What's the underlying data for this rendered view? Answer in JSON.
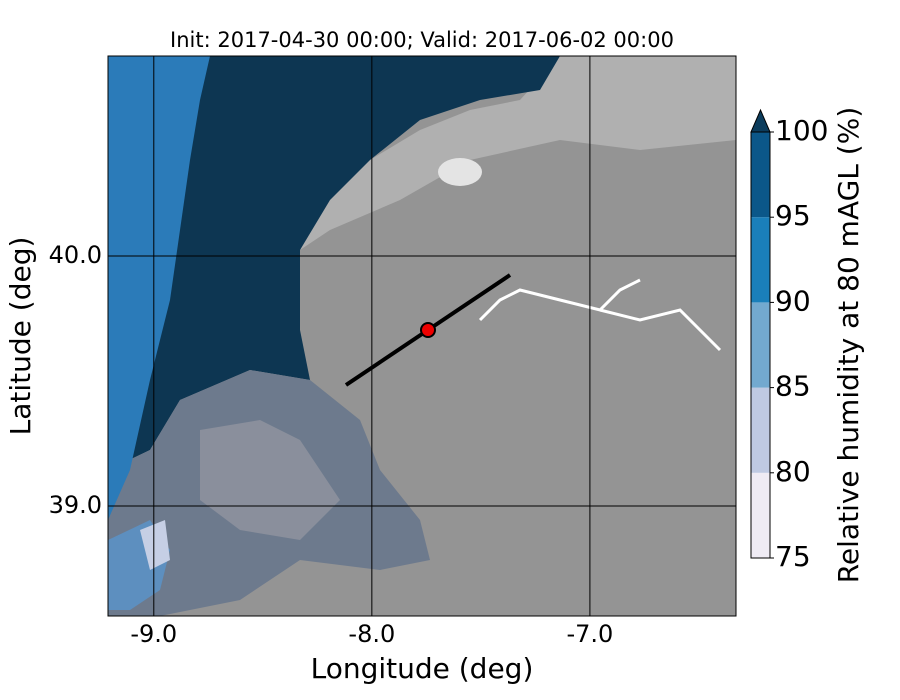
{
  "chart_data": {
    "type": "contour",
    "title": "Init: 2017-04-30 00:00; Valid: 2017-06-02 00:00",
    "xlabel": "Longitude (deg)",
    "ylabel": "Latitude (deg)",
    "xlim": [
      -9.21,
      -6.33
    ],
    "ylim": [
      38.56,
      40.8
    ],
    "xticks": [
      {
        "value": -9,
        "label": "-9.0"
      },
      {
        "value": -8,
        "label": "-8.0"
      },
      {
        "value": -7,
        "label": "-7.0"
      }
    ],
    "yticks": [
      {
        "value": 39,
        "label": "39.0"
      },
      {
        "value": 40,
        "label": "40.0"
      }
    ],
    "grid": true,
    "colorbar": {
      "label": "Relative humidity at 80 mAGL (%)",
      "ticks": [
        75,
        80,
        85,
        90,
        95,
        100
      ],
      "colors": [
        "#efebf4",
        "#bfc9e2",
        "#73a9cf",
        "#1a7fba",
        "#0b5789"
      ],
      "extend": "max",
      "over_color": "#0c3c5c"
    }
  }
}
